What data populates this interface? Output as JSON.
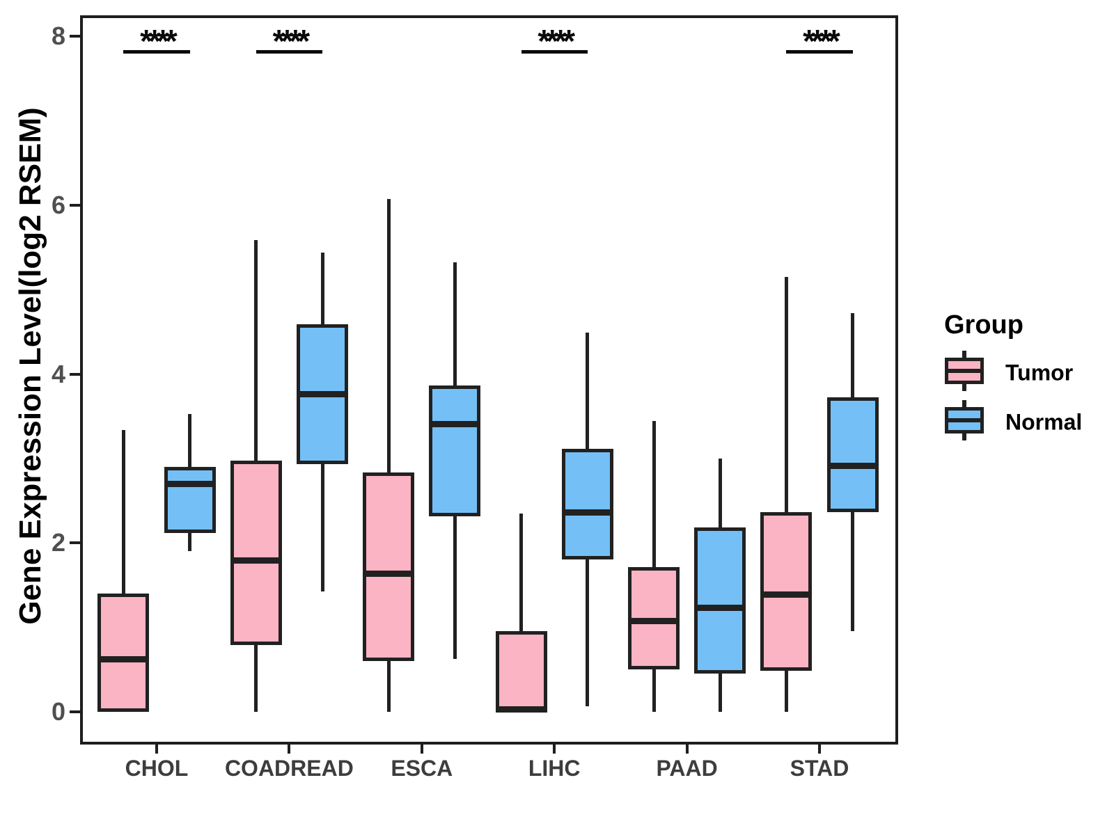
{
  "figure": {
    "y_axis": {
      "title": "Gene Expression Level(log2 RSEM)",
      "tick_labels": [
        "0",
        "2",
        "4",
        "6",
        "8"
      ],
      "tick_values": [
        0,
        2,
        4,
        6,
        8
      ]
    },
    "x_axis": {
      "categories": [
        "CHOL",
        "COADREAD",
        "ESCA",
        "LIHC",
        "PAAD",
        "STAD"
      ]
    },
    "legend": {
      "title": "Group",
      "entries": [
        {
          "label": "Tumor",
          "color": "#FAB4C3"
        },
        {
          "label": "Normal",
          "color": "#74C0F6"
        }
      ]
    },
    "colors": {
      "tumor_fill": "#FAB4C3",
      "normal_fill": "#74C0F6",
      "stroke": "#212121",
      "axis_text": "#4f4f4f",
      "category_text": "#3d3d3d"
    }
  },
  "chart_data": {
    "type": "boxplot",
    "title": "",
    "xlabel": "",
    "ylabel": "Gene Expression Level(log2 RSEM)",
    "ylim": [
      -0.4,
      8.26
    ],
    "yticks": [
      0,
      2,
      4,
      6,
      8
    ],
    "grid": false,
    "legend_position": "right",
    "categories": [
      "CHOL",
      "COADREAD",
      "ESCA",
      "LIHC",
      "PAAD",
      "STAD"
    ],
    "series": [
      {
        "name": "Tumor",
        "color": "#FAB4C3",
        "boxes": [
          {
            "category": "CHOL",
            "whisker_low": 0.0,
            "q1": 0.0,
            "median": 0.62,
            "q3": 1.4,
            "whisker_high": 3.34
          },
          {
            "category": "COADREAD",
            "whisker_low": 0.0,
            "q1": 0.79,
            "median": 1.79,
            "q3": 2.97,
            "whisker_high": 5.59
          },
          {
            "category": "ESCA",
            "whisker_low": 0.0,
            "q1": 0.6,
            "median": 1.63,
            "q3": 2.83,
            "whisker_high": 6.07
          },
          {
            "category": "LIHC",
            "whisker_low": 0.0,
            "q1": 0.0,
            "median": 0.03,
            "q3": 0.95,
            "whisker_high": 2.35
          },
          {
            "category": "PAAD",
            "whisker_low": 0.0,
            "q1": 0.5,
            "median": 1.07,
            "q3": 1.71,
            "whisker_high": 3.44
          },
          {
            "category": "STAD",
            "whisker_low": 0.0,
            "q1": 0.48,
            "median": 1.39,
            "q3": 2.36,
            "whisker_high": 5.15
          }
        ]
      },
      {
        "name": "Normal",
        "color": "#74C0F6",
        "boxes": [
          {
            "category": "CHOL",
            "whisker_low": 1.9,
            "q1": 2.12,
            "median": 2.7,
            "q3": 2.9,
            "whisker_high": 3.53
          },
          {
            "category": "COADREAD",
            "whisker_low": 1.42,
            "q1": 2.93,
            "median": 3.76,
            "q3": 4.59,
            "whisker_high": 5.44
          },
          {
            "category": "ESCA",
            "whisker_low": 0.62,
            "q1": 2.31,
            "median": 3.41,
            "q3": 3.86,
            "whisker_high": 5.32
          },
          {
            "category": "LIHC",
            "whisker_low": 0.06,
            "q1": 1.8,
            "median": 2.36,
            "q3": 3.11,
            "whisker_high": 4.49
          },
          {
            "category": "PAAD",
            "whisker_low": 0.0,
            "q1": 0.45,
            "median": 1.23,
            "q3": 2.18,
            "whisker_high": 3.0
          },
          {
            "category": "STAD",
            "whisker_low": 0.95,
            "q1": 2.36,
            "median": 2.91,
            "q3": 3.72,
            "whisker_high": 4.72
          }
        ]
      }
    ],
    "significance": [
      {
        "category": "CHOL",
        "label": "****"
      },
      {
        "category": "COADREAD",
        "label": "****"
      },
      {
        "category": "LIHC",
        "label": "****"
      },
      {
        "category": "STAD",
        "label": "****"
      }
    ]
  }
}
